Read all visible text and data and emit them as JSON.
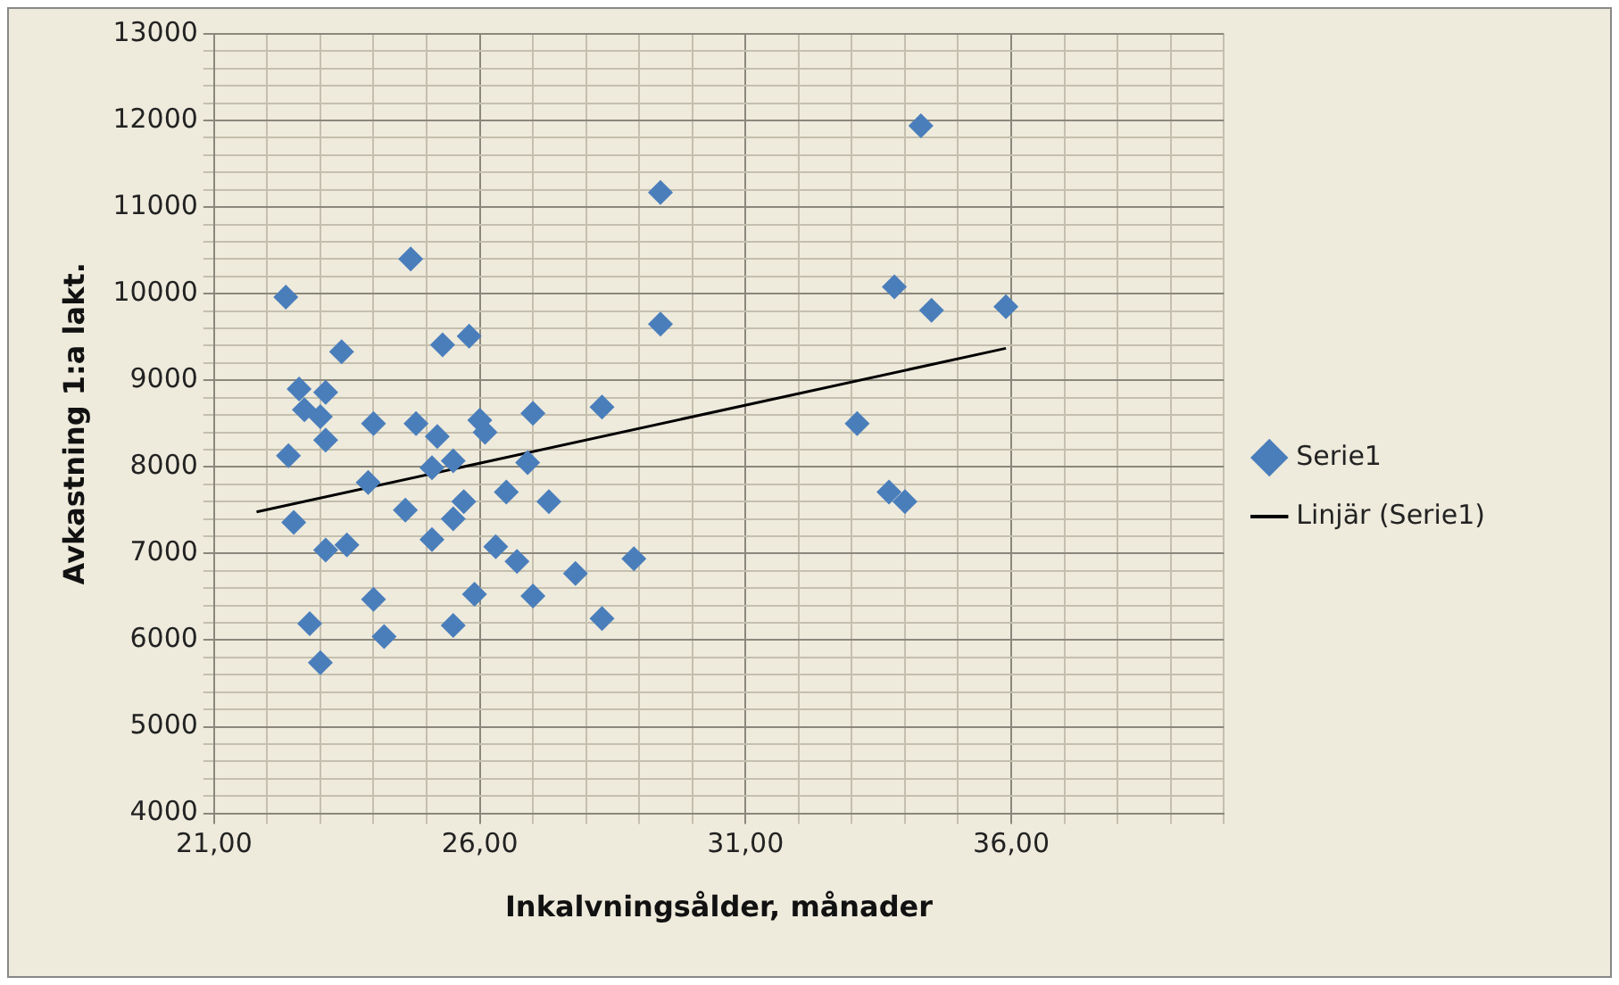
{
  "chart_data": {
    "type": "scatter",
    "xlabel": "Inkalvningsålder, månader",
    "ylabel": "Avkastning 1:a lakt.",
    "xlim": [
      21,
      40
    ],
    "ylim": [
      4000,
      13000
    ],
    "xticks": [
      {
        "value": 21,
        "label": "21,00"
      },
      {
        "value": 22,
        "label": null
      },
      {
        "value": 23,
        "label": null
      },
      {
        "value": 24,
        "label": null
      },
      {
        "value": 25,
        "label": null
      },
      {
        "value": 26,
        "label": "26,00"
      },
      {
        "value": 27,
        "label": null
      },
      {
        "value": 28,
        "label": null
      },
      {
        "value": 29,
        "label": null
      },
      {
        "value": 30,
        "label": null
      },
      {
        "value": 31,
        "label": "31,00"
      },
      {
        "value": 32,
        "label": null
      },
      {
        "value": 33,
        "label": null
      },
      {
        "value": 34,
        "label": null
      },
      {
        "value": 35,
        "label": null
      },
      {
        "value": 36,
        "label": "36,00"
      },
      {
        "value": 37,
        "label": null
      },
      {
        "value": 38,
        "label": null
      },
      {
        "value": 39,
        "label": null
      },
      {
        "value": 40,
        "label": null
      }
    ],
    "yticks": [
      4000,
      {
        "value": 4200,
        "label": null
      },
      {
        "value": 4400,
        "label": null
      },
      {
        "value": 4600,
        "label": null
      },
      {
        "value": 4800,
        "label": null
      },
      5000,
      {
        "value": 5200,
        "label": null
      },
      {
        "value": 5400,
        "label": null
      },
      {
        "value": 5600,
        "label": null
      },
      {
        "value": 5800,
        "label": null
      },
      6000,
      {
        "value": 6200,
        "label": null
      },
      {
        "value": 6400,
        "label": null
      },
      {
        "value": 6600,
        "label": null
      },
      {
        "value": 6800,
        "label": null
      },
      7000,
      {
        "value": 7200,
        "label": null
      },
      {
        "value": 7400,
        "label": null
      },
      {
        "value": 7600,
        "label": null
      },
      {
        "value": 7800,
        "label": null
      },
      8000,
      {
        "value": 8200,
        "label": null
      },
      {
        "value": 8400,
        "label": null
      },
      {
        "value": 8600,
        "label": null
      },
      {
        "value": 8800,
        "label": null
      },
      9000,
      {
        "value": 9200,
        "label": null
      },
      {
        "value": 9400,
        "label": null
      },
      {
        "value": 9600,
        "label": null
      },
      {
        "value": 9800,
        "label": null
      },
      10000,
      {
        "value": 10200,
        "label": null
      },
      {
        "value": 10400,
        "label": null
      },
      {
        "value": 10600,
        "label": null
      },
      {
        "value": 10800,
        "label": null
      },
      11000,
      {
        "value": 11200,
        "label": null
      },
      {
        "value": 11400,
        "label": null
      },
      {
        "value": 11600,
        "label": null
      },
      {
        "value": 11800,
        "label": null
      },
      12000,
      {
        "value": 12200,
        "label": null
      },
      {
        "value": 12400,
        "label": null
      },
      {
        "value": 12600,
        "label": null
      },
      {
        "value": 12800,
        "label": null
      },
      13000
    ],
    "grid": true,
    "legend": "right",
    "marker": "diamond",
    "series": [
      {
        "name": "Serie1",
        "color": "#4a7ebb",
        "x": [
          22.35,
          23.4,
          24.7,
          25.3,
          25.8,
          22.6,
          23.1,
          22.7,
          23.0,
          23.1,
          22.4,
          24.0,
          24.8,
          25.2,
          26.0,
          26.1,
          27.0,
          28.3,
          23.9,
          25.1,
          25.5,
          26.9,
          26.5,
          27.3,
          24.6,
          25.7,
          25.5,
          22.5,
          25.1,
          23.1,
          23.5,
          26.3,
          26.7,
          27.8,
          28.9,
          24.0,
          25.9,
          27.0,
          22.8,
          24.2,
          25.5,
          28.3,
          23.0,
          34.3,
          29.4,
          29.4,
          33.8,
          34.5,
          35.9,
          33.1,
          33.7,
          34.0
        ],
        "values": [
          9960,
          9330,
          10400,
          9410,
          9510,
          8900,
          8860,
          8660,
          8580,
          8310,
          8130,
          8500,
          8500,
          8350,
          8540,
          8400,
          8620,
          8690,
          7820,
          7990,
          8070,
          8050,
          7710,
          7600,
          7500,
          7600,
          7400,
          7360,
          7160,
          7040,
          7100,
          7080,
          6910,
          6770,
          6940,
          6470,
          6530,
          6510,
          6190,
          6040,
          6170,
          6250,
          5740,
          11940,
          11170,
          9650,
          10080,
          9810,
          9850,
          8500,
          7710,
          7600
        ]
      },
      {
        "name": "Linjär (Serie1)",
        "type": "line",
        "color": "#000000",
        "marker": "none",
        "x": [
          21.8,
          35.9
        ],
        "values": [
          7480,
          9370
        ]
      }
    ]
  }
}
